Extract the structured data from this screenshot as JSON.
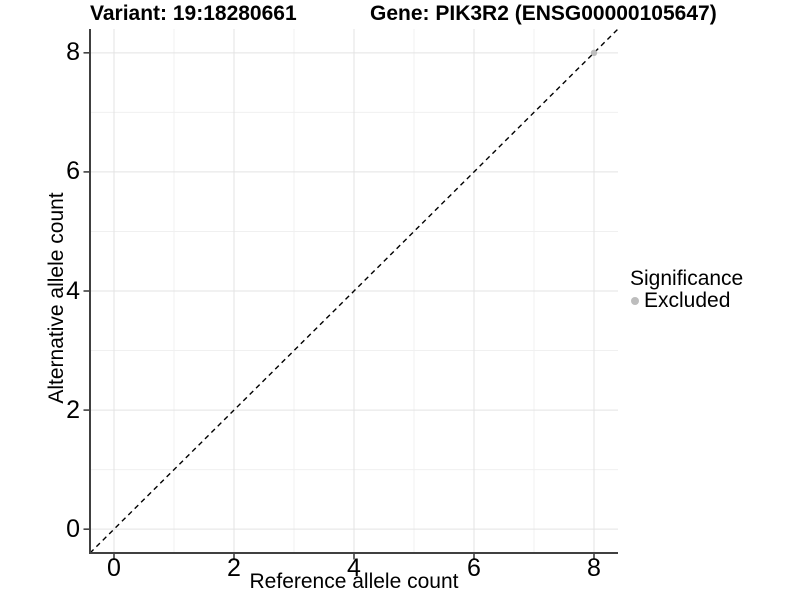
{
  "chart_data": {
    "type": "scatter",
    "title_left": "Variant: 19:18280661",
    "title_right": "Gene: PIK3R2 (ENSG00000105647)",
    "xlabel": "Reference allele count",
    "ylabel": "Alternative allele count",
    "xlim": [
      -0.4,
      8.4
    ],
    "ylim": [
      -0.4,
      8.4
    ],
    "x_major_ticks": [
      0,
      2,
      4,
      6,
      8
    ],
    "x_minor_ticks": [
      1,
      3,
      5,
      7
    ],
    "y_major_ticks": [
      0,
      2,
      4,
      6,
      8
    ],
    "y_minor_ticks": [
      1,
      3,
      5,
      7
    ],
    "grid": "major+minor",
    "reference_line": {
      "type": "identity",
      "slope": 1,
      "intercept": 0,
      "style": "dashed",
      "color": "#000000"
    },
    "series": [
      {
        "name": "Excluded",
        "color": "#bdbdbd",
        "marker": "circle",
        "points": [
          {
            "x": 8,
            "y": 8
          }
        ]
      }
    ],
    "legend": {
      "title": "Significance",
      "position": "right",
      "entries": [
        {
          "label": "Excluded",
          "color": "#bdbdbd"
        }
      ]
    },
    "style": {
      "grid_major_color": "#e3e3e3",
      "grid_minor_color": "#f0f0f0",
      "axis_line_color": "#404040",
      "tick_color": "#404040",
      "text_color": "#000000",
      "panel_background": "#ffffff"
    }
  }
}
